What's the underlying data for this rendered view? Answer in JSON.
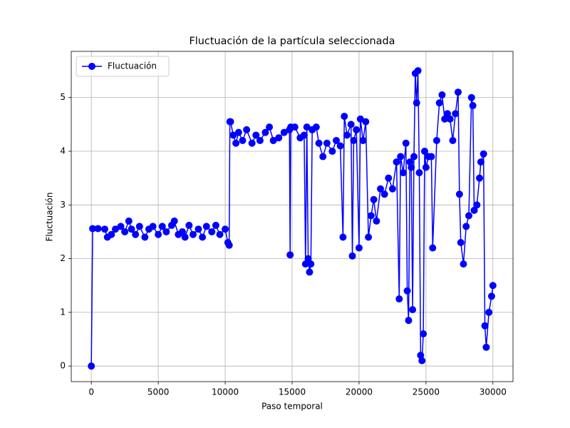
{
  "chart_data": {
    "type": "line",
    "title": "Fluctuación de la partícula seleccionada",
    "xlabel": "Paso temporal",
    "ylabel": "Fluctuación",
    "x": [
      0,
      100,
      500,
      1000,
      1200,
      1500,
      1800,
      2200,
      2500,
      2800,
      3000,
      3300,
      3600,
      4000,
      4300,
      4600,
      5000,
      5300,
      5600,
      6000,
      6200,
      6500,
      6800,
      7000,
      7300,
      7600,
      8000,
      8300,
      8600,
      9000,
      9300,
      9600,
      10000,
      10200,
      10300,
      10350,
      10400,
      10600,
      10800,
      11000,
      11300,
      11600,
      12000,
      12300,
      12600,
      13000,
      13300,
      13600,
      14000,
      14400,
      14800,
      14850,
      14900,
      15200,
      15600,
      15900,
      16000,
      16100,
      16200,
      16300,
      16400,
      16500,
      16800,
      17000,
      17300,
      17600,
      18000,
      18300,
      18600,
      18800,
      18900,
      19100,
      19400,
      19500,
      19600,
      19800,
      20000,
      20100,
      20300,
      20500,
      20700,
      20900,
      21100,
      21300,
      21600,
      21900,
      22200,
      22500,
      22800,
      23000,
      23100,
      23300,
      23500,
      23600,
      23700,
      23800,
      23900,
      24000,
      24100,
      24200,
      24300,
      24400,
      24500,
      24600,
      24700,
      24800,
      24900,
      25000,
      25200,
      25400,
      25500,
      25800,
      26000,
      26200,
      26400,
      26600,
      26800,
      27000,
      27200,
      27400,
      27500,
      27600,
      27800,
      28000,
      28200,
      28400,
      28500,
      28600,
      28800,
      29000,
      29100,
      29300,
      29400,
      29500,
      29700,
      29900,
      30000
    ],
    "series": [
      {
        "name": "Fluctuación",
        "color": "#0000ff",
        "values": [
          0,
          2.56,
          2.56,
          2.55,
          2.4,
          2.45,
          2.55,
          2.6,
          2.5,
          2.7,
          2.55,
          2.45,
          2.6,
          2.4,
          2.55,
          2.6,
          2.45,
          2.6,
          2.5,
          2.62,
          2.7,
          2.45,
          2.5,
          2.4,
          2.62,
          2.45,
          2.55,
          2.4,
          2.6,
          2.5,
          2.62,
          2.45,
          2.55,
          2.3,
          2.25,
          4.55,
          4.55,
          4.3,
          4.15,
          4.35,
          4.2,
          4.4,
          4.15,
          4.3,
          4.2,
          4.35,
          4.45,
          4.2,
          4.25,
          4.35,
          4.4,
          2.07,
          4.45,
          4.45,
          4.25,
          4.3,
          1.9,
          4.45,
          2.0,
          1.75,
          1.9,
          4.4,
          4.45,
          4.15,
          3.9,
          4.15,
          4.0,
          4.2,
          4.1,
          2.4,
          4.65,
          4.3,
          4.5,
          2.05,
          4.2,
          4.4,
          2.2,
          4.6,
          4.2,
          4.55,
          2.4,
          2.8,
          3.1,
          2.7,
          3.3,
          3.2,
          3.5,
          3.3,
          3.8,
          1.25,
          3.9,
          3.6,
          4.15,
          1.4,
          0.85,
          3.8,
          3.7,
          1.05,
          3.9,
          5.45,
          4.9,
          5.5,
          3.6,
          0.2,
          0.1,
          0.6,
          4.0,
          3.7,
          3.9,
          3.9,
          2.2,
          4.2,
          4.9,
          5.05,
          4.6,
          4.7,
          4.6,
          4.2,
          4.7,
          5.1,
          3.2,
          2.3,
          1.9,
          2.6,
          2.8,
          5.0,
          4.85,
          2.9,
          3.0,
          3.5,
          3.8,
          3.95,
          0.75,
          0.35,
          1.0,
          1.3,
          1.5
        ]
      }
    ],
    "xlim": [
      -1500,
      31500
    ],
    "ylim": [
      -0.29,
      5.86
    ],
    "xticks": [
      0,
      5000,
      10000,
      15000,
      20000,
      25000,
      30000
    ],
    "yticks": [
      0,
      1,
      2,
      3,
      4,
      5
    ],
    "grid": true,
    "legend": "upper left"
  }
}
